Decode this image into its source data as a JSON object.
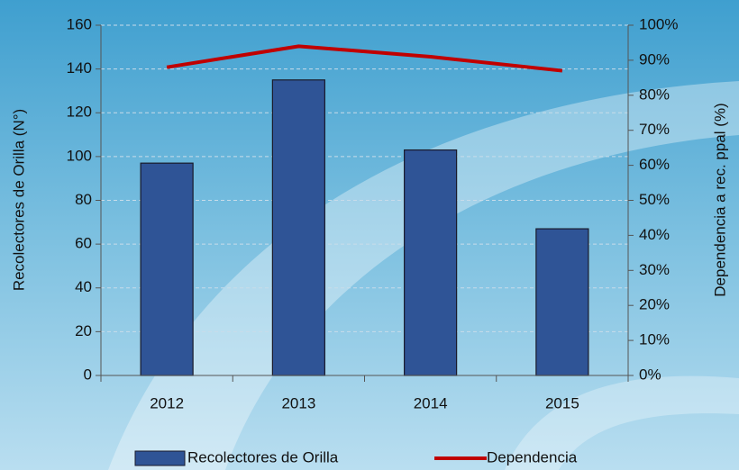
{
  "chart_data": {
    "type": "bar",
    "categories": [
      "2012",
      "2013",
      "2014",
      "2015"
    ],
    "series": [
      {
        "name": "Recolectores de Orilla",
        "color": "#2f5496",
        "values": [
          97,
          135,
          103,
          67
        ]
      },
      {
        "name": "Dependencia",
        "color": "#c00000",
        "values": [
          88,
          94,
          91,
          87
        ],
        "axis": "y2"
      }
    ],
    "ylabel": "Recolectores de Orilla (N°)",
    "y2label": "Dependencia a rec. ppal (%)",
    "ylim": [
      0,
      160
    ],
    "yticks": [
      0,
      20,
      40,
      60,
      80,
      100,
      120,
      140,
      160
    ],
    "y2lim": [
      0,
      100
    ],
    "y2ticks": [
      {
        "value": 0,
        "label": "0%"
      },
      {
        "value": 10,
        "label": "10%"
      },
      {
        "value": 20,
        "label": "20%"
      },
      {
        "value": 30,
        "label": "30%"
      },
      {
        "value": 40,
        "label": "40%"
      },
      {
        "value": 50,
        "label": "50%"
      },
      {
        "value": 60,
        "label": "60%"
      },
      {
        "value": 70,
        "label": "70%"
      },
      {
        "value": 80,
        "label": "80%"
      },
      {
        "value": 90,
        "label": "90%"
      },
      {
        "value": 100,
        "label": "100%"
      }
    ],
    "grid": true,
    "legend": "bottom"
  }
}
